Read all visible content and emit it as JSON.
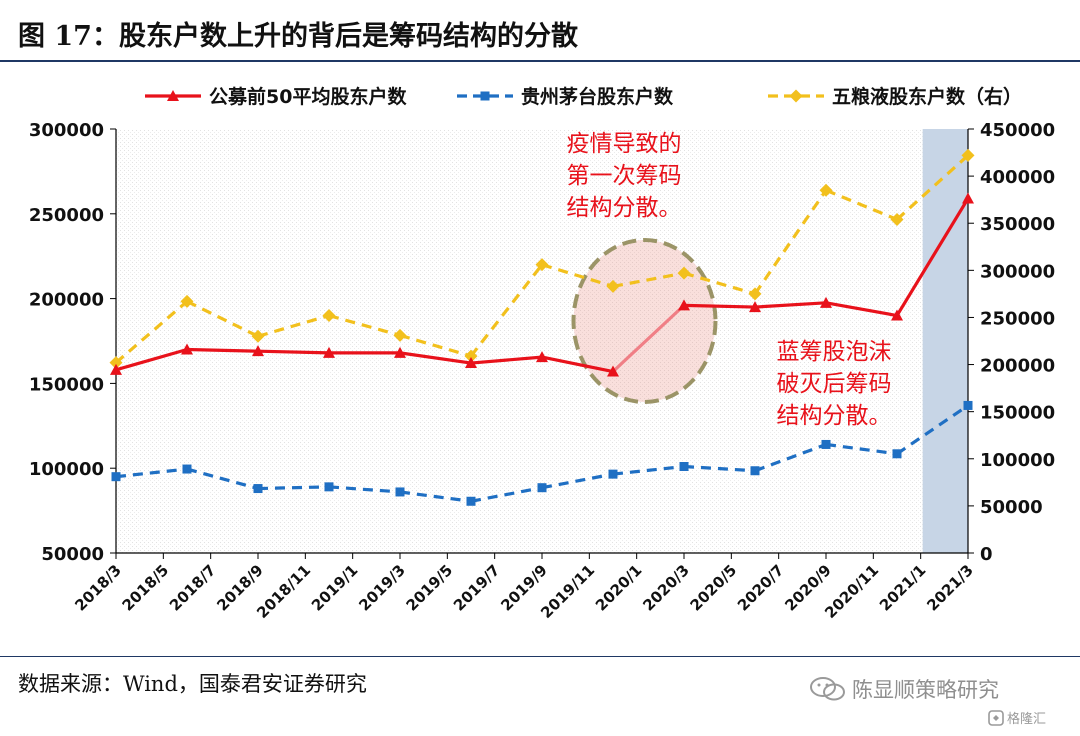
{
  "figure": {
    "title": "图 17：股东户数上升的背后是筹码结构的分散",
    "source": "数据来源：Wind，国泰君安证券研究",
    "watermark": "陈显顺策略研究",
    "brand": "格隆汇"
  },
  "chart_data": {
    "type": "line",
    "x": [
      "2018/3",
      "2018/6",
      "2018/9",
      "2018/12",
      "2019/3",
      "2019/6",
      "2019/9",
      "2019/12",
      "2020/3",
      "2020/6",
      "2020/9",
      "2020/12",
      "2021/3"
    ],
    "x_tick_labels": [
      "2018/3",
      "2018/5",
      "2018/7",
      "2018/9",
      "2018/11",
      "2019/1",
      "2019/3",
      "2019/5",
      "2019/7",
      "2019/9",
      "2019/11",
      "2020/1",
      "2020/3",
      "2020/5",
      "2020/7",
      "2020/9",
      "2020/11",
      "2021/1",
      "2021/3"
    ],
    "series": [
      {
        "name": "公募前50平均股东户数",
        "axis": "left",
        "color": "#e8121b",
        "style": "solid",
        "marker": "triangle",
        "values": [
          158000,
          170000,
          169000,
          168000,
          168000,
          162000,
          165500,
          157000,
          196000,
          195000,
          197500,
          190000,
          259000
        ]
      },
      {
        "name": "贵州茅台股东户数",
        "axis": "left",
        "color": "#1f6fc3",
        "style": "dashed",
        "marker": "square",
        "values": [
          95000,
          99500,
          88000,
          89000,
          86000,
          80500,
          88500,
          96500,
          101000,
          98500,
          114000,
          108500,
          137000
        ]
      },
      {
        "name": "五粮液股东户数（右）",
        "axis": "right",
        "color": "#f2c01d",
        "style": "dashed",
        "marker": "diamond",
        "values": [
          202000,
          267000,
          230000,
          252000,
          231000,
          209000,
          306000,
          283000,
          297000,
          275000,
          385000,
          354000,
          422000
        ]
      }
    ],
    "y_left": {
      "min": 50000,
      "max": 300000,
      "ticks": [
        50000,
        100000,
        150000,
        200000,
        250000,
        300000
      ]
    },
    "y_right": {
      "min": 0,
      "max": 450000,
      "ticks": [
        0,
        50000,
        100000,
        150000,
        200000,
        250000,
        300000,
        350000,
        400000,
        450000
      ]
    },
    "grid": false,
    "legend_position": "top",
    "annotations": [
      {
        "lines": [
          "疫情导致的",
          "第一次筹码",
          "结构分散。"
        ],
        "color": "#e8121b"
      },
      {
        "lines": [
          "蓝筹股泡沫",
          "破灭后筹码",
          "结构分散。"
        ],
        "color": "#e8121b"
      }
    ],
    "highlight": {
      "from": "2021/1",
      "to": "2021/3",
      "color": "#c7d5e6"
    }
  }
}
